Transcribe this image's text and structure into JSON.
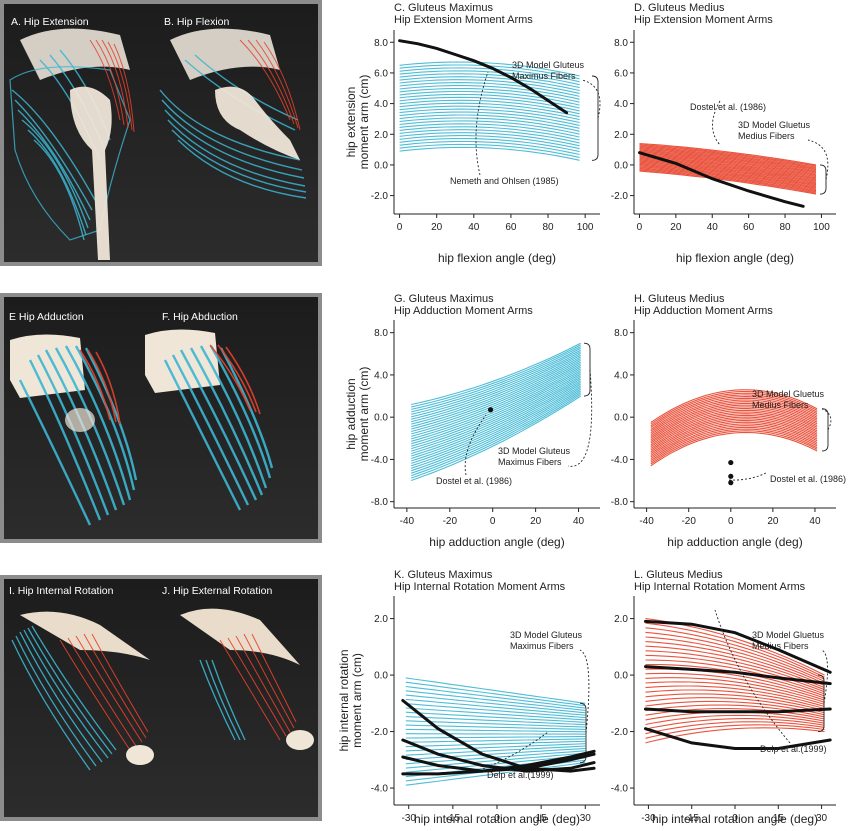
{
  "renders": [
    {
      "id": "A",
      "label": "A. Hip Extension"
    },
    {
      "id": "B",
      "label": "B. Hip Flexion"
    },
    {
      "id": "E",
      "label": "E  Hip Adduction"
    },
    {
      "id": "F",
      "label": "F. Hip Abduction"
    },
    {
      "id": "I",
      "label": "I. Hip Internal Rotation"
    },
    {
      "id": "J",
      "label": "J. Hip External Rotation"
    }
  ],
  "colors": {
    "gluteus_maximus": "#3bb6d3",
    "gluteus_medius": "#e8412a",
    "experimental": "#111111",
    "bone": "#f1e4d2"
  },
  "chart_data": [
    {
      "id": "C",
      "type": "line",
      "title": "C. Gluteus Maximus",
      "subtitle": "Hip Extension Moment Arms",
      "ylabel_lines": [
        "hip extension",
        "moment arm (cm)"
      ],
      "xlabel": "hip flexion angle (deg)",
      "xticks": [
        "0",
        "20",
        "40",
        "60",
        "80",
        "100"
      ],
      "xtick_values": [
        0,
        20,
        40,
        60,
        80,
        100
      ],
      "yticks": [
        "8.0",
        "6.0",
        "4.0",
        "2.0",
        "0.0",
        "-2.0"
      ],
      "ytick_values": [
        8,
        6,
        4,
        2,
        0,
        -2
      ],
      "xlim": [
        -3,
        108
      ],
      "ylim": [
        -3.2,
        8.8
      ],
      "model": {
        "name": "3D Model Gluteus Maximus Fibers",
        "label_lines": [
          "3D Model Gluteus",
          "Maximus Fibers"
        ],
        "x_range": [
          0,
          97
        ],
        "fiber_count": 30,
        "start_range": [
          0.9,
          6.5
        ],
        "end_range": [
          0.3,
          5.8
        ],
        "bend": 0.5
      },
      "experimental": [
        {
          "name": "Nemeth and Ohlsen (1985)",
          "x": [
            0,
            10,
            20,
            30,
            40,
            50,
            60,
            70,
            80,
            90
          ],
          "y": [
            8.1,
            7.9,
            7.6,
            7.2,
            6.8,
            6.3,
            5.7,
            5.0,
            4.2,
            3.4
          ]
        }
      ],
      "annotations": [
        {
          "text": "Nemeth and Ohlsen (1985)"
        }
      ]
    },
    {
      "id": "D",
      "type": "line",
      "title": "D. Gluteus Medius",
      "subtitle": "Hip Extension Moment Arms",
      "ylabel_lines": [],
      "xlabel": "hip flexion angle (deg)",
      "xticks": [
        "0",
        "20",
        "40",
        "60",
        "80",
        "100"
      ],
      "xtick_values": [
        0,
        20,
        40,
        60,
        80,
        100
      ],
      "yticks": [
        "8.0",
        "6.0",
        "4.0",
        "2.0",
        "0.0",
        "-2.0"
      ],
      "ytick_values": [
        8,
        6,
        4,
        2,
        0,
        -2
      ],
      "xlim": [
        -3,
        108
      ],
      "ylim": [
        -3.2,
        8.8
      ],
      "model": {
        "name": "3D Model Gluteus Medius Fibers",
        "label_lines": [
          "3D Model Gluetus",
          "Medius Fibers"
        ],
        "x_range": [
          0,
          97
        ],
        "fiber_count": 26,
        "start_range": [
          -0.4,
          1.4
        ],
        "end_range": [
          -1.9,
          0.0
        ],
        "bend": 0.15
      },
      "experimental": [
        {
          "name": "Dostel et al. (1986)",
          "x": [
            0,
            20,
            40,
            60,
            80,
            90
          ],
          "y": [
            0.8,
            0.1,
            -0.9,
            -1.7,
            -2.4,
            -2.7
          ]
        }
      ],
      "annotations": [
        {
          "text": "Dostel et al. (1986)"
        }
      ]
    },
    {
      "id": "G",
      "type": "line",
      "title": "G. Gluteus Maximus",
      "subtitle": "Hip Adduction Moment Arms",
      "ylabel_lines": [
        "hip adduction",
        "moment arm (cm)"
      ],
      "xlabel": "hip adduction angle (deg)",
      "xticks": [
        "-40",
        "-20",
        "0",
        "20",
        "40"
      ],
      "xtick_values": [
        -40,
        -20,
        0,
        20,
        40
      ],
      "yticks": [
        "8.0",
        "4.0",
        "0.0",
        "-4.0",
        "-8.0"
      ],
      "ytick_values": [
        8,
        4,
        0,
        -4,
        -8
      ],
      "xlim": [
        -46,
        50
      ],
      "ylim": [
        -8.6,
        9.2
      ],
      "model": {
        "name": "3D Model Gluteus Maximus Fibers",
        "label_lines": [
          "3D Model Gluteus",
          "Maximus Fibers"
        ],
        "x_range": [
          -38,
          41
        ],
        "fiber_count": 32,
        "start_range": [
          -6.0,
          1.2
        ],
        "end_range": [
          2.0,
          7.0
        ],
        "bend": -0.6
      },
      "experimental": [
        {
          "name": "Dostel et al. (1986)",
          "x": [
            -1
          ],
          "y": [
            0.7
          ]
        }
      ],
      "annotations": [
        {
          "text": "Dostel et al. (1986)"
        }
      ]
    },
    {
      "id": "H",
      "type": "line",
      "title": "H. Gluteus Medius",
      "subtitle": "Hip Adduction Moment Arms",
      "ylabel_lines": [],
      "xlabel": "hip adduction angle (deg)",
      "xticks": [
        "-40",
        "-20",
        "0",
        "20",
        "40"
      ],
      "xtick_values": [
        -40,
        -20,
        0,
        20,
        40
      ],
      "yticks": [
        "8.0",
        "4.0",
        "0.0",
        "-4.0",
        "-8.0"
      ],
      "ytick_values": [
        8,
        4,
        0,
        -4,
        -8
      ],
      "xlim": [
        -46,
        50
      ],
      "ylim": [
        -8.6,
        9.2
      ],
      "model": {
        "name": "3D Model Gluetus Medius Fibers",
        "label_lines": [
          "3D Model Gluetus",
          "Medius Fibers"
        ],
        "x_range": [
          -38,
          41
        ],
        "fiber_count": 26,
        "start_range": [
          -4.6,
          -0.5
        ],
        "end_range": [
          -3.2,
          0.8
        ],
        "bend": -2.4
      },
      "experimental": [
        {
          "name": "Dostel et al. (1986)",
          "x": [
            0,
            0,
            0
          ],
          "y": [
            -4.3,
            -5.6,
            -6.2
          ]
        }
      ],
      "annotations": [
        {
          "text": "Dostel et al. (1986)"
        }
      ]
    },
    {
      "id": "K",
      "type": "line",
      "title": "K. Gluteus Maximus",
      "subtitle": "Hip Internal Rotation Moment Arms",
      "ylabel_lines": [
        "hip internal rotation",
        "moment arm (cm)"
      ],
      "xlabel": "hip internal rotation angle (deg)",
      "xticks": [
        "-30",
        "-15",
        "0",
        "15",
        "30"
      ],
      "xtick_values": [
        -30,
        -15,
        0,
        15,
        30
      ],
      "yticks": [
        "2.0",
        "0.0",
        "-2.0",
        "-4.0"
      ],
      "ytick_values": [
        2,
        0,
        -2,
        -4
      ],
      "xlim": [
        -35,
        35
      ],
      "ylim": [
        -4.6,
        2.8
      ],
      "model": {
        "name": "3D Model Gluteus Maximus Fibers",
        "label_lines": [
          "3D Model Gluteus",
          "Maximus Fibers"
        ],
        "x_range": [
          -31,
          30
        ],
        "fiber_count": 26,
        "start_range": [
          -3.9,
          -0.1
        ],
        "end_range": [
          -3.1,
          -1.0
        ],
        "bend": 0.0
      },
      "experimental": [
        {
          "name": "Delp et al. (1999) 1",
          "x": [
            -32,
            -20,
            -5,
            10,
            25,
            33
          ],
          "y": [
            -0.9,
            -1.9,
            -2.8,
            -3.3,
            -3.4,
            -3.3
          ]
        },
        {
          "name": "Delp et al. (1999) 2",
          "x": [
            -32,
            -20,
            -5,
            10,
            25,
            33
          ],
          "y": [
            -2.3,
            -2.8,
            -3.2,
            -3.4,
            -3.3,
            -3.1
          ]
        },
        {
          "name": "Delp et al. (1999) 3",
          "x": [
            -32,
            -20,
            -5,
            10,
            25,
            33
          ],
          "y": [
            -2.9,
            -3.2,
            -3.4,
            -3.3,
            -3.0,
            -2.8
          ]
        },
        {
          "name": "Delp et al. (1999) 4",
          "x": [
            -32,
            -20,
            -5,
            10,
            25,
            33
          ],
          "y": [
            -3.5,
            -3.5,
            -3.4,
            -3.2,
            -2.9,
            -2.7
          ]
        }
      ],
      "annotations": [
        {
          "text": "Delp et al.(1999)"
        }
      ]
    },
    {
      "id": "L",
      "type": "line",
      "title": "L. Gluteus Medius",
      "subtitle": "Hip Internal Rotation Moment Arms",
      "ylabel_lines": [],
      "xlabel": "hip internal rotation angle (deg)",
      "xticks": [
        "-30",
        "-15",
        "0",
        "15",
        "30"
      ],
      "xtick_values": [
        -30,
        -15,
        0,
        15,
        30
      ],
      "yticks": [
        "2.0",
        "0.0",
        "-2.0",
        "-4.0"
      ],
      "ytick_values": [
        2,
        0,
        -2,
        -4
      ],
      "xlim": [
        -35,
        35
      ],
      "ylim": [
        -4.6,
        2.8
      ],
      "model": {
        "name": "3D Model Gluetus Medius Fibers",
        "label_lines": [
          "3D Model Gluetus",
          "Medius Fibers"
        ],
        "x_range": [
          -31,
          31
        ],
        "fiber_count": 28,
        "start_range": [
          -2.4,
          2.0
        ],
        "end_range": [
          -2.0,
          0.0
        ],
        "bend": 0.3
      },
      "experimental": [
        {
          "name": "Delp et al. (1999) 1",
          "x": [
            -31,
            -15,
            0,
            15,
            33
          ],
          "y": [
            1.9,
            1.8,
            1.5,
            0.9,
            0.1
          ]
        },
        {
          "name": "Delp et al. (1999) 2",
          "x": [
            -31,
            -15,
            0,
            15,
            33
          ],
          "y": [
            0.3,
            0.2,
            0.1,
            -0.1,
            -0.3
          ]
        },
        {
          "name": "Delp et al. (1999) 3",
          "x": [
            -31,
            -15,
            0,
            15,
            33
          ],
          "y": [
            -1.2,
            -1.3,
            -1.3,
            -1.3,
            -1.2
          ]
        },
        {
          "name": "Delp et al. (1999) 4",
          "x": [
            -31,
            -15,
            0,
            15,
            33
          ],
          "y": [
            -1.9,
            -2.4,
            -2.6,
            -2.6,
            -2.3
          ]
        }
      ],
      "annotations": [
        {
          "text": "Delp et al.(1999)"
        }
      ]
    }
  ]
}
